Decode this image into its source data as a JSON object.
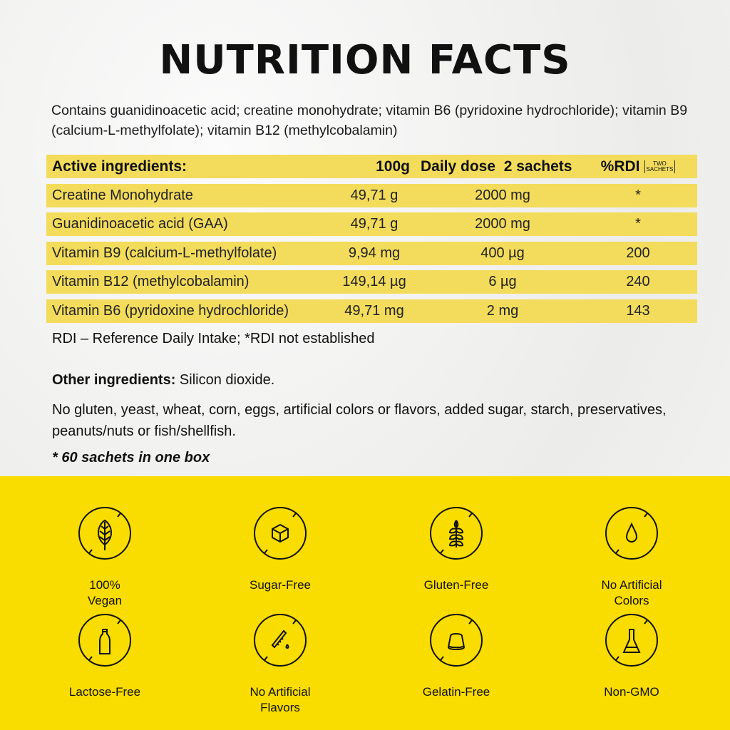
{
  "title": "NUTRITION FACTS",
  "description": "Contains guanidinoacetic acid; creatine monohydrate; vitamin B6 (pyridoxine hydrochloride); vitamin B9 (calcium-L-methylfolate); vitamin B12 (methylcobalamin)",
  "table": {
    "headers": {
      "ingredient": "Active ingredients:",
      "per100g": "100g",
      "daily": "Daily dose  2 sachets",
      "rdi": "%RDI",
      "rdi_note_1": "TWO",
      "rdi_note_2": "SACHETS"
    },
    "rows": [
      {
        "ingredient": "Creatine Monohydrate",
        "per100g": "49,71 g",
        "daily": "2000 mg",
        "rdi": "*"
      },
      {
        "ingredient": "Guanidinoacetic acid (GAA)",
        "per100g": "49,71 g",
        "daily": "2000 mg",
        "rdi": "*"
      },
      {
        "ingredient": "Vitamin B9 (calcium-L-methylfolate)",
        "per100g": "9,94 mg",
        "daily": "400 µg",
        "rdi": "200"
      },
      {
        "ingredient": "Vitamin B12 (methylcobalamin)",
        "per100g": "149,14 µg",
        "daily": "6 µg",
        "rdi": "240"
      },
      {
        "ingredient": "Vitamin B6 (pyridoxine hydrochloride)",
        "per100g": "49,71 mg",
        "daily": "2 mg",
        "rdi": "143"
      }
    ]
  },
  "rdi_note": "RDI – Reference Daily Intake; *RDI not established",
  "other_label": "Other ingredients:",
  "other_value": " Silicon dioxide.",
  "free_from": "No gluten, yeast, wheat, corn, eggs, artificial colors or flavors, added sugar, starch, preservatives, peanuts/nuts or fish/shellfish.",
  "box_note": "* 60 sachets in one box",
  "colors": {
    "table_row": "#f3dc5c",
    "banner": "#f9dc00"
  },
  "badges": [
    {
      "icon": "leaf-icon",
      "line1": "100%",
      "line2": "Vegan"
    },
    {
      "icon": "sugar-cube-icon",
      "line1": "Sugar-Free",
      "line2": ""
    },
    {
      "icon": "wheat-icon",
      "line1": "Gluten-Free",
      "line2": ""
    },
    {
      "icon": "drop-icon",
      "line1": "No Artificial",
      "line2": "Colors"
    },
    {
      "icon": "bottle-icon",
      "line1": "Lactose-Free",
      "line2": ""
    },
    {
      "icon": "test-tube-icon",
      "line1": "No Artificial",
      "line2": "Flavors"
    },
    {
      "icon": "jelly-icon",
      "line1": "Gelatin-Free",
      "line2": ""
    },
    {
      "icon": "flask-icon",
      "line1": "Non-GMO",
      "line2": ""
    }
  ]
}
